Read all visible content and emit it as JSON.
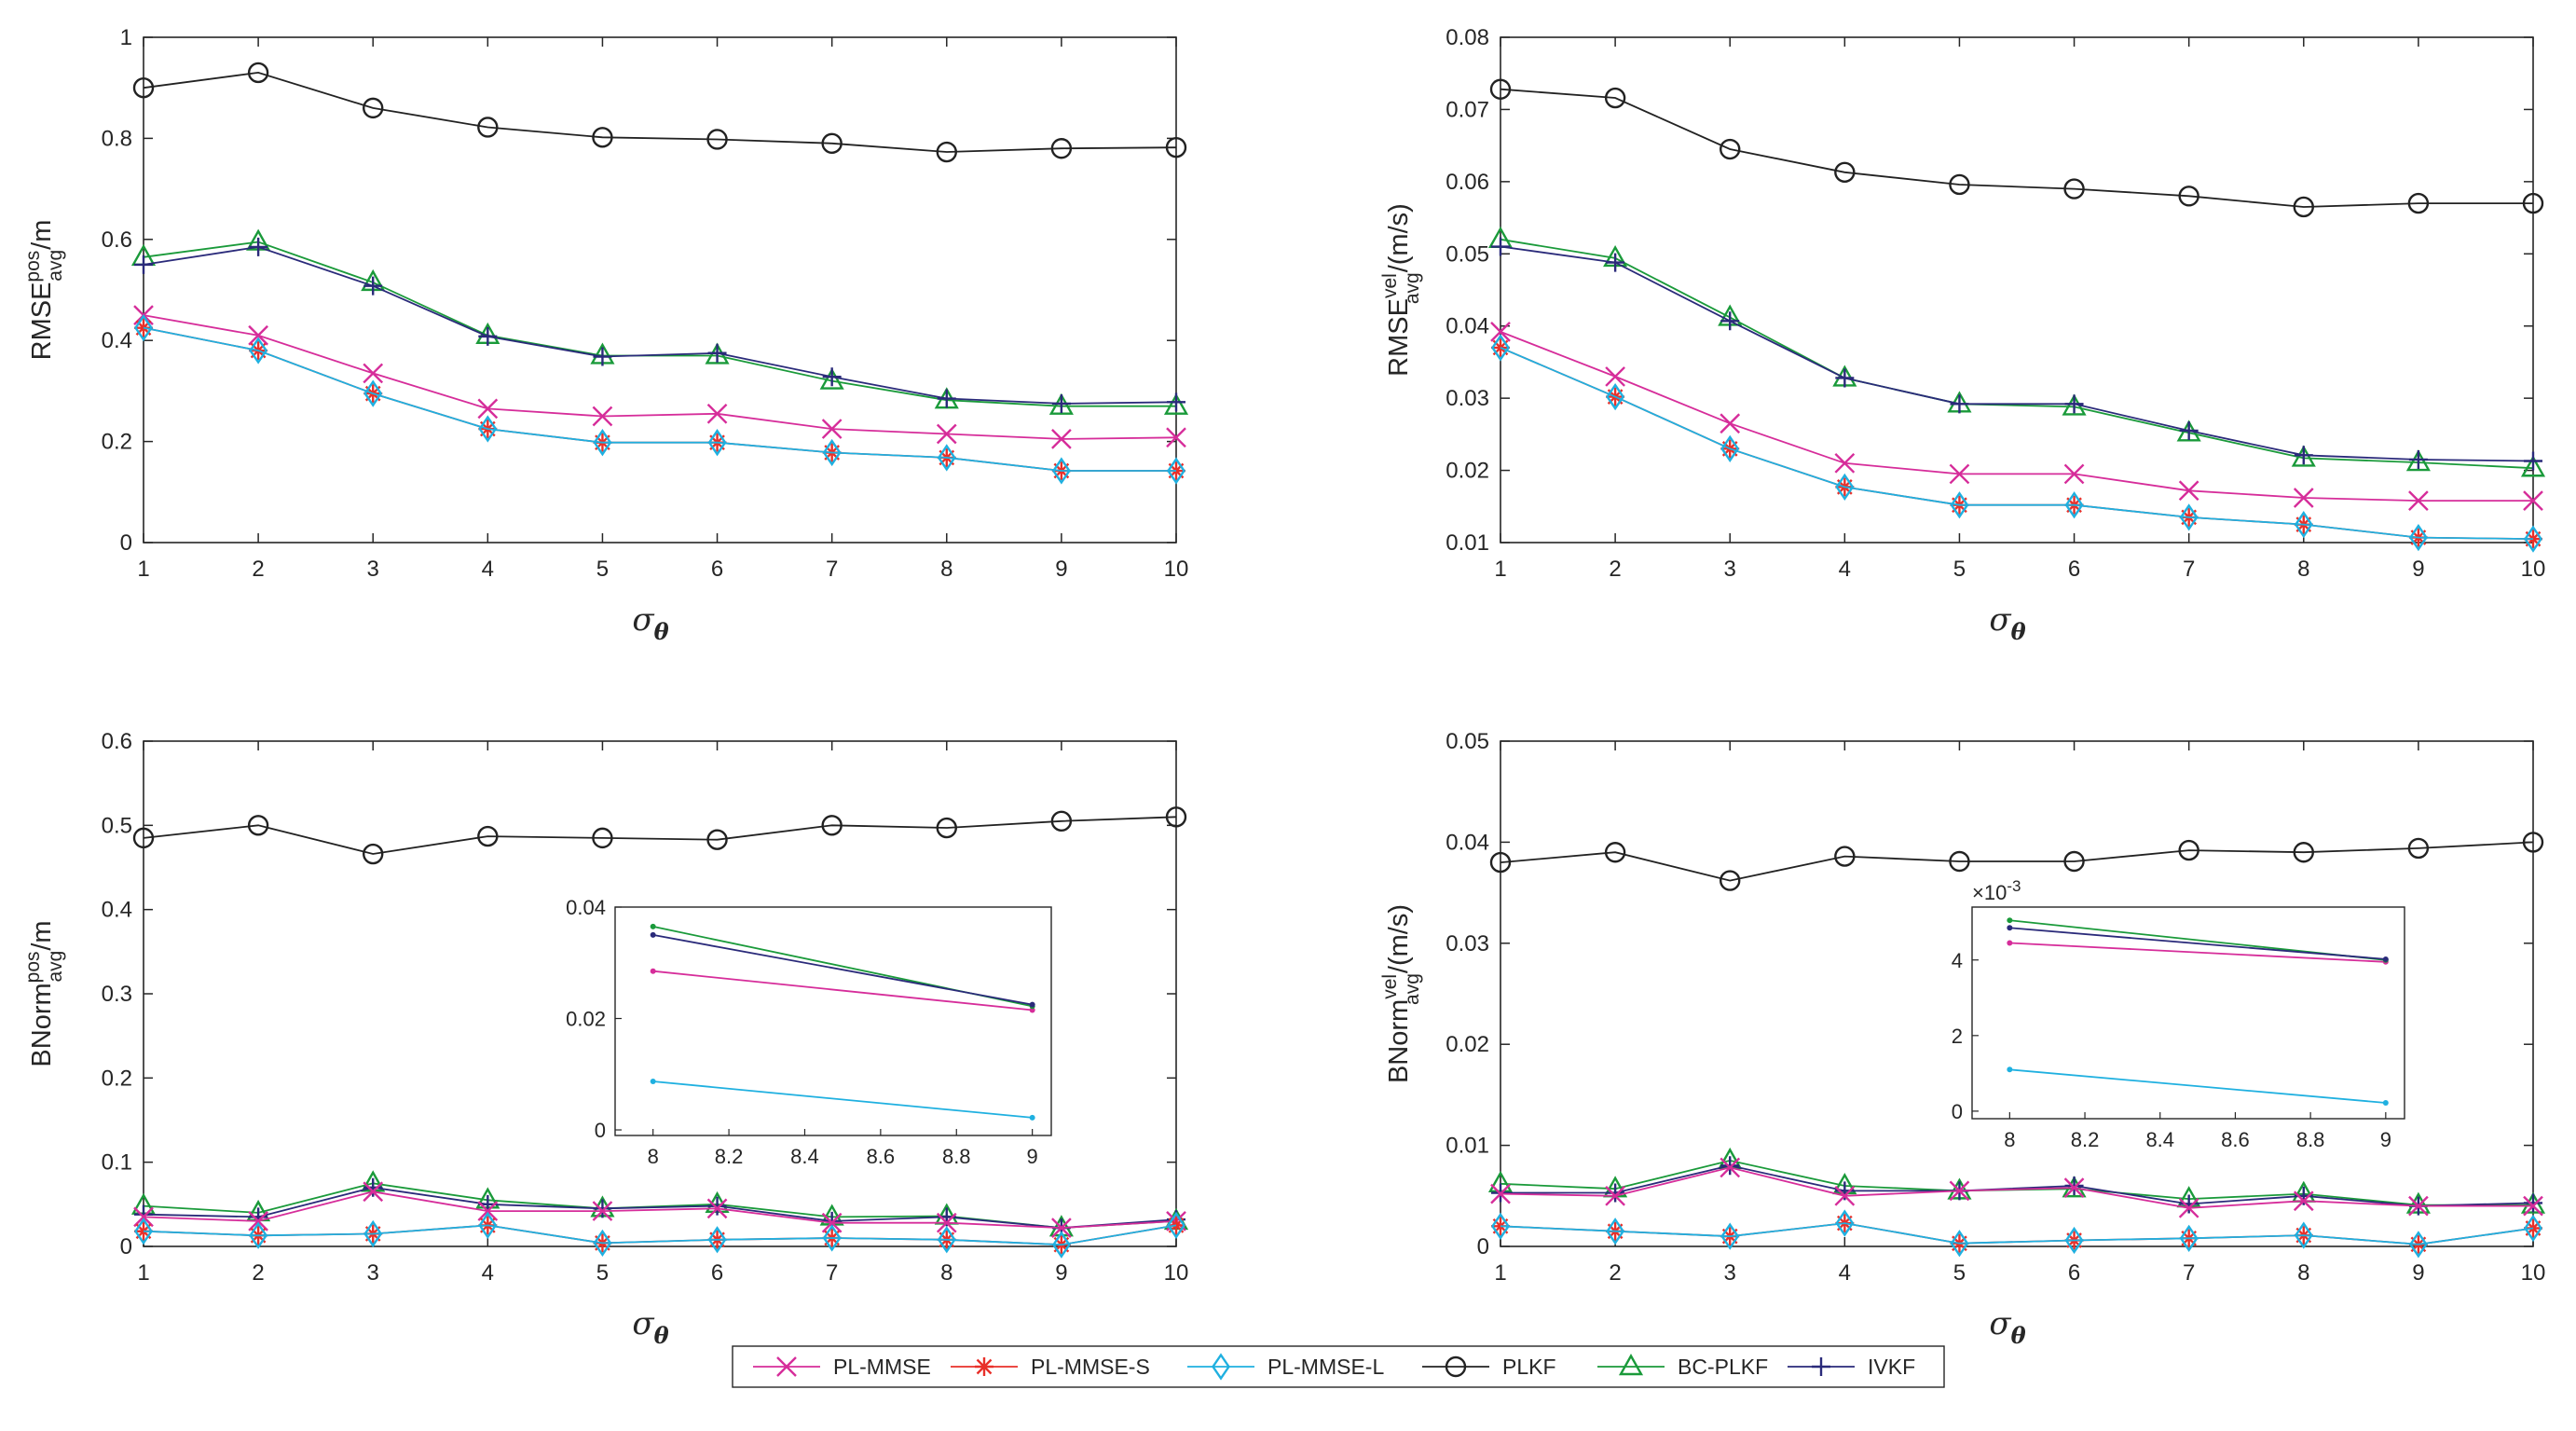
{
  "chart_data": [
    {
      "type": "line",
      "x": [
        1,
        2,
        3,
        4,
        5,
        6,
        7,
        8,
        9,
        10
      ],
      "xlabel": "σ",
      "xlabel_sub": "θ",
      "ylabel": "RMSE",
      "ylabel_sup": "pos",
      "ylabel_sub": "avg",
      "ylabel_unit": "/m",
      "ylim": [
        0,
        1
      ],
      "yticks": [
        0,
        0.2,
        0.4,
        0.6,
        0.8,
        1
      ],
      "yticklabels": [
        "0",
        "0.2",
        "0.4",
        "0.6",
        "0.8",
        "1"
      ],
      "xticks": [
        1,
        2,
        3,
        4,
        5,
        6,
        7,
        8,
        9,
        10
      ],
      "xticklabels": [
        "1",
        "2",
        "3",
        "4",
        "5",
        "6",
        "7",
        "8",
        "9",
        "10"
      ],
      "series": [
        {
          "name": "PL-MMSE",
          "values": [
            0.45,
            0.41,
            0.335,
            0.265,
            0.25,
            0.255,
            0.225,
            0.215,
            0.205,
            0.208
          ]
        },
        {
          "name": "PL-MMSE-S",
          "values": [
            0.425,
            0.38,
            0.295,
            0.225,
            0.198,
            0.198,
            0.178,
            0.168,
            0.142,
            0.142
          ]
        },
        {
          "name": "PL-MMSE-L",
          "values": [
            0.425,
            0.38,
            0.295,
            0.225,
            0.198,
            0.198,
            0.178,
            0.168,
            0.142,
            0.142
          ]
        },
        {
          "name": "PLKF",
          "values": [
            0.9,
            0.93,
            0.86,
            0.822,
            0.802,
            0.798,
            0.79,
            0.773,
            0.78,
            0.782
          ]
        },
        {
          "name": "BC-PLKF",
          "values": [
            0.565,
            0.595,
            0.515,
            0.41,
            0.37,
            0.37,
            0.32,
            0.282,
            0.27,
            0.27
          ]
        },
        {
          "name": "IVKF",
          "values": [
            0.55,
            0.585,
            0.508,
            0.408,
            0.368,
            0.375,
            0.328,
            0.285,
            0.275,
            0.278
          ]
        }
      ]
    },
    {
      "type": "line",
      "x": [
        1,
        2,
        3,
        4,
        5,
        6,
        7,
        8,
        9,
        10
      ],
      "xlabel": "σ",
      "xlabel_sub": "θ",
      "ylabel": "RMSE",
      "ylabel_sup": "vel",
      "ylabel_sub": "avg",
      "ylabel_unit": "/(m/s)",
      "ylim": [
        0.01,
        0.08
      ],
      "yticks": [
        0.01,
        0.02,
        0.03,
        0.04,
        0.05,
        0.06,
        0.07,
        0.08
      ],
      "yticklabels": [
        "0.01",
        "0.02",
        "0.03",
        "0.04",
        "0.05",
        "0.06",
        "0.07",
        "0.08"
      ],
      "xticks": [
        1,
        2,
        3,
        4,
        5,
        6,
        7,
        8,
        9,
        10
      ],
      "xticklabels": [
        "1",
        "2",
        "3",
        "4",
        "5",
        "6",
        "7",
        "8",
        "9",
        "10"
      ],
      "series": [
        {
          "name": "PL-MMSE",
          "values": [
            0.0392,
            0.033,
            0.0265,
            0.021,
            0.0195,
            0.0195,
            0.0172,
            0.0162,
            0.0158,
            0.0158
          ]
        },
        {
          "name": "PL-MMSE-S",
          "values": [
            0.037,
            0.0302,
            0.023,
            0.0177,
            0.0152,
            0.0152,
            0.0135,
            0.0125,
            0.0107,
            0.0105
          ]
        },
        {
          "name": "PL-MMSE-L",
          "values": [
            0.037,
            0.0302,
            0.023,
            0.0177,
            0.0152,
            0.0152,
            0.0135,
            0.0125,
            0.0107,
            0.0105
          ]
        },
        {
          "name": "PLKF",
          "values": [
            0.0728,
            0.0716,
            0.0645,
            0.0613,
            0.0596,
            0.059,
            0.058,
            0.0565,
            0.057,
            0.057
          ]
        },
        {
          "name": "BC-PLKF",
          "values": [
            0.052,
            0.0494,
            0.0412,
            0.0328,
            0.0292,
            0.0288,
            0.0252,
            0.0217,
            0.0211,
            0.0203
          ]
        },
        {
          "name": "IVKF",
          "values": [
            0.051,
            0.0488,
            0.0407,
            0.0328,
            0.0292,
            0.0292,
            0.0255,
            0.0221,
            0.0215,
            0.0213
          ]
        }
      ]
    },
    {
      "type": "line",
      "x": [
        1,
        2,
        3,
        4,
        5,
        6,
        7,
        8,
        9,
        10
      ],
      "xlabel": "σ",
      "xlabel_sub": "θ",
      "ylabel": "BNorm",
      "ylabel_sup": "pos",
      "ylabel_sub": "avg",
      "ylabel_unit": "/m",
      "ylim": [
        0,
        0.6
      ],
      "yticks": [
        0,
        0.1,
        0.2,
        0.3,
        0.4,
        0.5,
        0.6
      ],
      "yticklabels": [
        "0",
        "0.1",
        "0.2",
        "0.3",
        "0.4",
        "0.5",
        "0.6"
      ],
      "xticks": [
        1,
        2,
        3,
        4,
        5,
        6,
        7,
        8,
        9,
        10
      ],
      "xticklabels": [
        "1",
        "2",
        "3",
        "4",
        "5",
        "6",
        "7",
        "8",
        "9",
        "10"
      ],
      "series": [
        {
          "name": "PL-MMSE",
          "values": [
            0.035,
            0.03,
            0.065,
            0.042,
            0.042,
            0.045,
            0.028,
            0.028,
            0.022,
            0.03
          ]
        },
        {
          "name": "PL-MMSE-S",
          "values": [
            0.018,
            0.013,
            0.015,
            0.025,
            0.004,
            0.008,
            0.01,
            0.008,
            0.002,
            0.025
          ]
        },
        {
          "name": "PL-MMSE-L",
          "values": [
            0.018,
            0.013,
            0.015,
            0.025,
            0.004,
            0.008,
            0.01,
            0.008,
            0.002,
            0.025
          ]
        },
        {
          "name": "PLKF",
          "values": [
            0.485,
            0.5,
            0.466,
            0.487,
            0.485,
            0.483,
            0.5,
            0.497,
            0.505,
            0.51
          ]
        },
        {
          "name": "BC-PLKF",
          "values": [
            0.048,
            0.04,
            0.075,
            0.055,
            0.045,
            0.05,
            0.035,
            0.036,
            0.022,
            0.03
          ]
        },
        {
          "name": "IVKF",
          "values": [
            0.038,
            0.035,
            0.07,
            0.05,
            0.045,
            0.048,
            0.03,
            0.035,
            0.022,
            0.032
          ]
        }
      ],
      "inset": {
        "xlim": [
          7.9,
          9.05
        ],
        "ylim": [
          -0.001,
          0.04
        ],
        "xticks": [
          8,
          8.2,
          8.4,
          8.6,
          8.8,
          9
        ],
        "xticklabels": [
          "8",
          "8.2",
          "8.4",
          "8.6",
          "8.8",
          "9"
        ],
        "yticks": [
          0,
          0.02,
          0.04
        ],
        "yticklabels": [
          "0",
          "0.02",
          "0.04"
        ],
        "series": [
          {
            "name": "PL-MMSE",
            "x": [
              8,
              9
            ],
            "values": [
              0.0285,
              0.0215
            ]
          },
          {
            "name": "PL-MMSE-L",
            "x": [
              8,
              9
            ],
            "values": [
              0.0087,
              0.0022
            ]
          },
          {
            "name": "BC-PLKF",
            "x": [
              8,
              9
            ],
            "values": [
              0.0365,
              0.0222
            ]
          },
          {
            "name": "IVKF",
            "x": [
              8,
              9
            ],
            "values": [
              0.035,
              0.0225
            ]
          }
        ]
      }
    },
    {
      "type": "line",
      "x": [
        1,
        2,
        3,
        4,
        5,
        6,
        7,
        8,
        9,
        10
      ],
      "xlabel": "σ",
      "xlabel_sub": "θ",
      "ylabel": "BNorm",
      "ylabel_sup": "vel",
      "ylabel_sub": "avg",
      "ylabel_unit": "/(m/s)",
      "ylim": [
        0,
        0.05
      ],
      "yticks": [
        0,
        0.01,
        0.02,
        0.03,
        0.04,
        0.05
      ],
      "yticklabels": [
        "0",
        "0.01",
        "0.02",
        "0.03",
        "0.04",
        "0.05"
      ],
      "xticks": [
        1,
        2,
        3,
        4,
        5,
        6,
        7,
        8,
        9,
        10
      ],
      "xticklabels": [
        "1",
        "2",
        "3",
        "4",
        "5",
        "6",
        "7",
        "8",
        "9",
        "10"
      ],
      "series": [
        {
          "name": "PL-MMSE",
          "values": [
            0.0052,
            0.005,
            0.0078,
            0.005,
            0.0055,
            0.0058,
            0.0038,
            0.0045,
            0.004,
            0.004
          ]
        },
        {
          "name": "PL-MMSE-S",
          "values": [
            0.002,
            0.0015,
            0.001,
            0.0023,
            0.0003,
            0.0006,
            0.0008,
            0.0011,
            0.0002,
            0.0018
          ]
        },
        {
          "name": "PL-MMSE-L",
          "values": [
            0.002,
            0.0015,
            0.001,
            0.0023,
            0.0003,
            0.0006,
            0.0008,
            0.0011,
            0.0002,
            0.0018
          ]
        },
        {
          "name": "PLKF",
          "values": [
            0.038,
            0.039,
            0.0362,
            0.0386,
            0.0381,
            0.0381,
            0.0392,
            0.039,
            0.0394,
            0.04
          ]
        },
        {
          "name": "BC-PLKF",
          "values": [
            0.0062,
            0.0057,
            0.0085,
            0.006,
            0.0055,
            0.0057,
            0.0047,
            0.0052,
            0.0041,
            0.0041
          ]
        },
        {
          "name": "IVKF",
          "values": [
            0.0053,
            0.0053,
            0.008,
            0.0055,
            0.0055,
            0.006,
            0.0042,
            0.005,
            0.004,
            0.0043
          ]
        }
      ],
      "inset": {
        "xlim": [
          7.9,
          9.05
        ],
        "ylim": [
          -0.2,
          5.4
        ],
        "exponent_label": "×10",
        "exponent_power": "-3",
        "xticks": [
          8,
          8.2,
          8.4,
          8.6,
          8.8,
          9
        ],
        "xticklabels": [
          "8",
          "8.2",
          "8.4",
          "8.6",
          "8.8",
          "9"
        ],
        "yticks": [
          0,
          2,
          4
        ],
        "yticklabels": [
          "0",
          "2",
          "4"
        ],
        "series": [
          {
            "name": "PL-MMSE",
            "x": [
              8,
              9
            ],
            "values": [
              4.45,
              3.95
            ]
          },
          {
            "name": "PL-MMSE-L",
            "x": [
              8,
              9
            ],
            "values": [
              1.1,
              0.22
            ]
          },
          {
            "name": "BC-PLKF",
            "x": [
              8,
              9
            ],
            "values": [
              5.05,
              4.0
            ]
          },
          {
            "name": "IVKF",
            "x": [
              8,
              9
            ],
            "values": [
              4.85,
              4.02
            ]
          }
        ]
      }
    }
  ],
  "legend": {
    "placement": "bottom-center",
    "entries": [
      {
        "label": "PL-MMSE",
        "color": "#d62d9a",
        "marker": "x"
      },
      {
        "label": "PL-MMSE-S",
        "color": "#e8302a",
        "marker": "asterisk"
      },
      {
        "label": "PL-MMSE-L",
        "color": "#1fb0e0",
        "marker": "diamond"
      },
      {
        "label": "PLKF",
        "color": "#222222",
        "marker": "circle"
      },
      {
        "label": "BC-PLKF",
        "color": "#1a9a3a",
        "marker": "triangle"
      },
      {
        "label": "IVKF",
        "color": "#2a2a7a",
        "marker": "plus"
      }
    ]
  }
}
